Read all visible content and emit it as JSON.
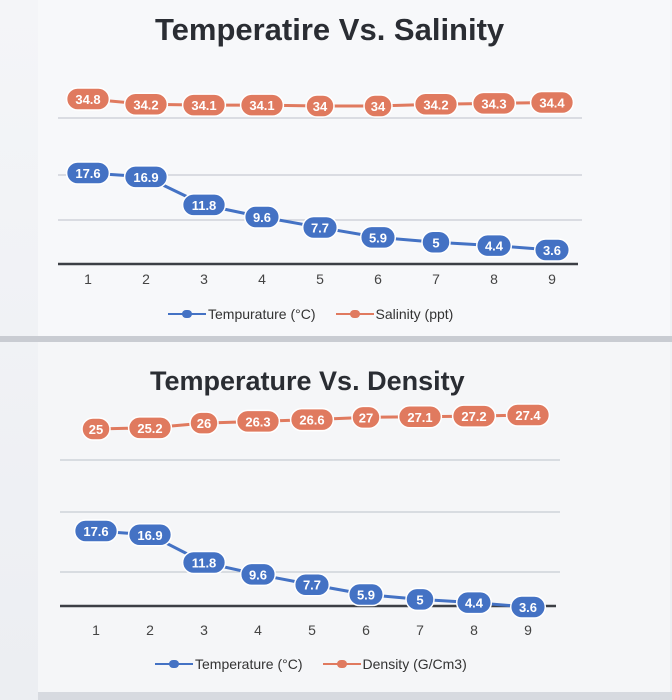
{
  "colors": {
    "series_primary": "#4472C4",
    "series_secondary": "#E07A5F",
    "marker_text": "#ffffff"
  },
  "chart_data": [
    {
      "type": "line",
      "title": "Temperatire Vs. Salinity",
      "categories": [
        "1",
        "2",
        "3",
        "4",
        "5",
        "6",
        "7",
        "8",
        "9"
      ],
      "series": [
        {
          "name": "Tempurature (°C)",
          "values": [
            17.6,
            16.9,
            11.8,
            9.6,
            7.7,
            5.9,
            5,
            4.4,
            3.6
          ],
          "color": "#4472C4"
        },
        {
          "name": "Salinity (ppt)",
          "values": [
            34.8,
            34.2,
            34.1,
            34.1,
            34,
            34,
            34.2,
            34.3,
            34.4
          ],
          "color": "#E07A5F"
        }
      ],
      "data_labels": true,
      "grid": true,
      "legend": "bottom"
    },
    {
      "type": "line",
      "title": "Temperature Vs. Density",
      "categories": [
        "1",
        "2",
        "3",
        "4",
        "5",
        "6",
        "7",
        "8",
        "9"
      ],
      "series": [
        {
          "name": "Temperature (°C)",
          "values": [
            17.6,
            16.9,
            11.8,
            9.6,
            7.7,
            5.9,
            5,
            4.4,
            3.6
          ],
          "color": "#4472C4"
        },
        {
          "name": "Density (G/Cm3)",
          "values": [
            25,
            25.2,
            26,
            26.3,
            26.6,
            27,
            27.1,
            27.2,
            27.4
          ],
          "color": "#E07A5F"
        }
      ],
      "data_labels": true,
      "grid": true,
      "legend": "bottom"
    }
  ]
}
